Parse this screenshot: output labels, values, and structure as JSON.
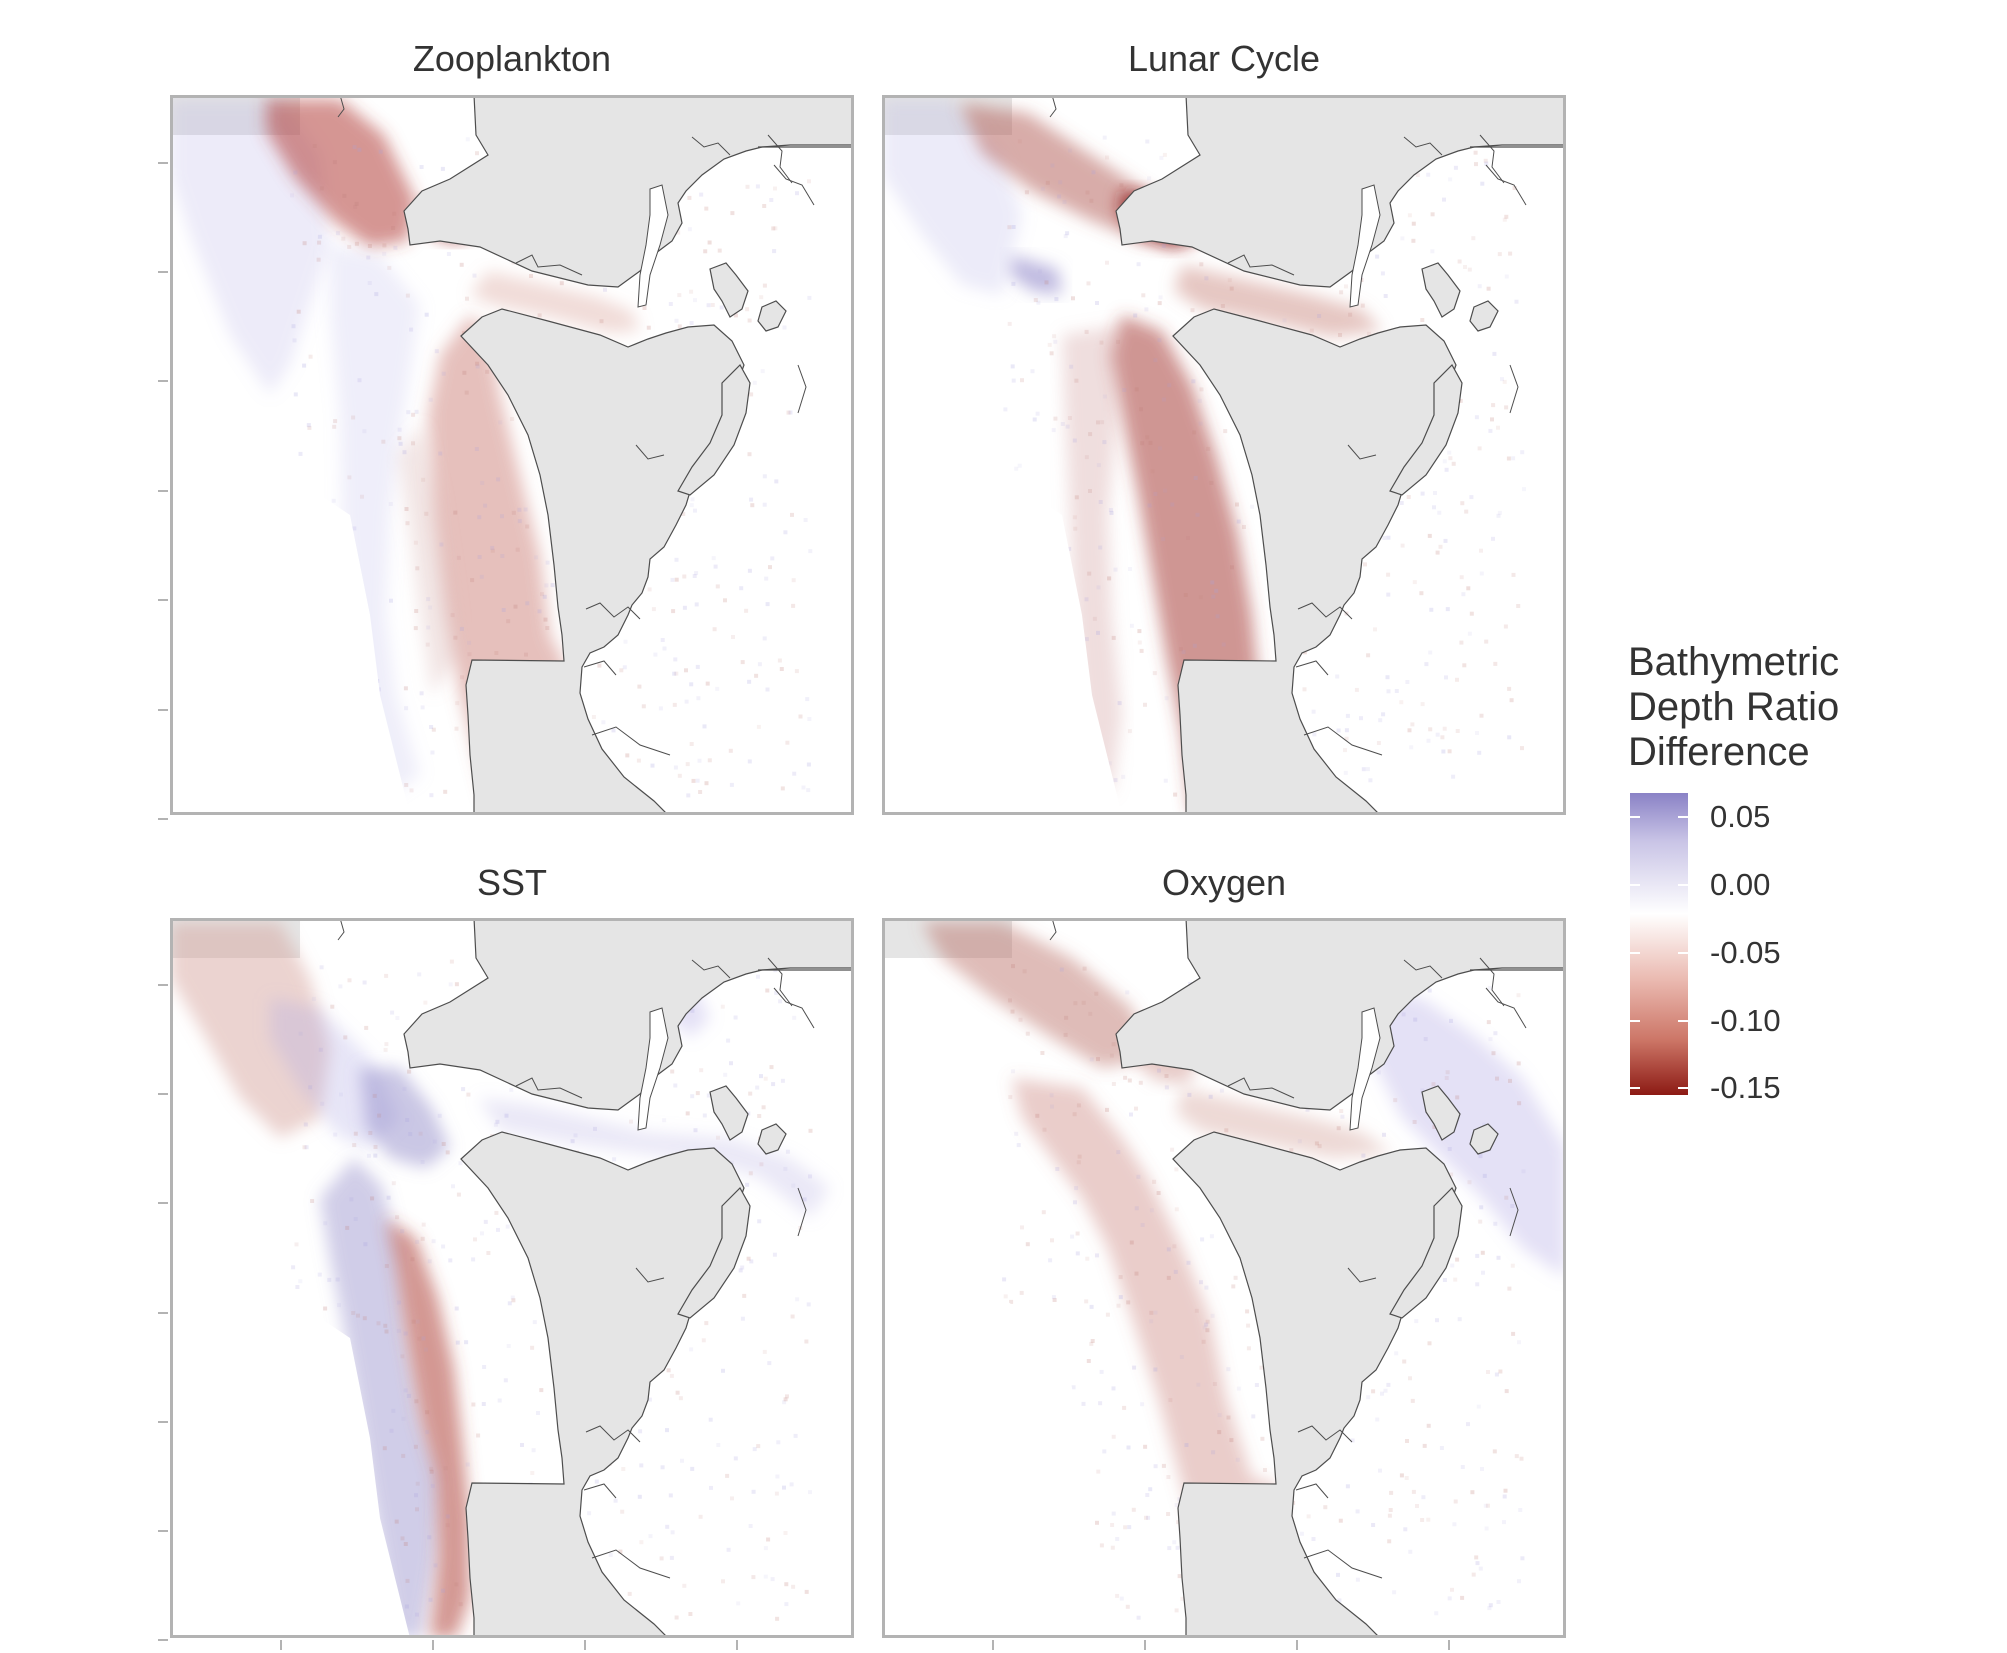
{
  "panels": [
    {
      "title": "Zooplankton",
      "pattern": "zoo"
    },
    {
      "title": "Lunar Cycle",
      "pattern": "lunar"
    },
    {
      "title": "SST",
      "pattern": "sst"
    },
    {
      "title": "Oxygen",
      "pattern": "oxygen"
    }
  ],
  "legend": {
    "title_lines": [
      "Bathymetric",
      "Depth Ratio",
      "Difference"
    ],
    "breaks": [
      {
        "label": "0.05",
        "value": 0.05
      },
      {
        "label": "0.00",
        "value": 0.0
      },
      {
        "label": "-0.05",
        "value": -0.05
      },
      {
        "label": "-0.10",
        "value": -0.1
      },
      {
        "label": "-0.15",
        "value": -0.15
      }
    ],
    "range": [
      0.068,
      -0.155
    ],
    "colors": {
      "high": "#8a82c6",
      "mid": "#ffffff",
      "low": "#8c1a14"
    }
  },
  "colors": {
    "land": "#e5e5e5",
    "ocean": "#ffffff",
    "border": "#b3b3b3",
    "coastline": "#4d4d4d",
    "axis": "#b3b3b3"
  }
}
